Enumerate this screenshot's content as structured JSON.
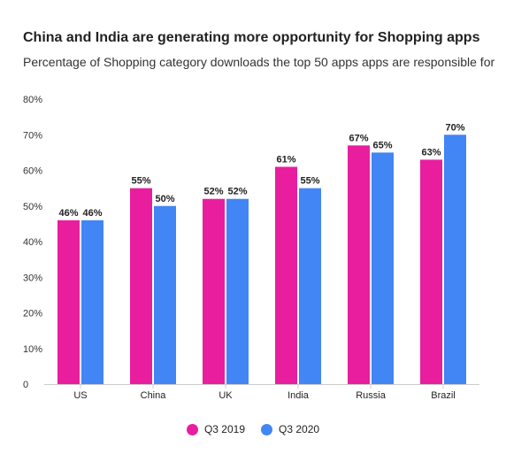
{
  "header": {
    "title": "China and India are generating more opportunity for Shopping apps",
    "subtitle": "Percentage of Shopping category downloads the top 50 apps apps are responsible for"
  },
  "chart_data": {
    "type": "bar",
    "title": "China and India are generating more opportunity for Shopping apps",
    "subtitle": "Percentage of Shopping category downloads the top 50 apps apps are responsible for",
    "categories": [
      "US",
      "China",
      "UK",
      "India",
      "Russia",
      "Brazil"
    ],
    "series": [
      {
        "name": "Q3 2019",
        "color": "#e91e9e",
        "values": [
          46,
          55,
          52,
          61,
          67,
          63
        ],
        "labels": [
          "46%",
          "55%",
          "52%",
          "61%",
          "67%",
          "63%"
        ]
      },
      {
        "name": "Q3 2020",
        "color": "#4285f4",
        "values": [
          46,
          50,
          52,
          55,
          65,
          70
        ],
        "labels": [
          "46%",
          "50%",
          "52%",
          "55%",
          "65%",
          "70%"
        ]
      }
    ],
    "yticks": [
      0,
      10,
      20,
      30,
      40,
      50,
      60,
      70,
      80
    ],
    "ytick_labels": [
      "0",
      "10%",
      "20%",
      "30%",
      "40%",
      "50%",
      "60%",
      "70%",
      "80%"
    ],
    "ylim": [
      0,
      80
    ],
    "grid": false,
    "legend_position": "bottom-center"
  }
}
